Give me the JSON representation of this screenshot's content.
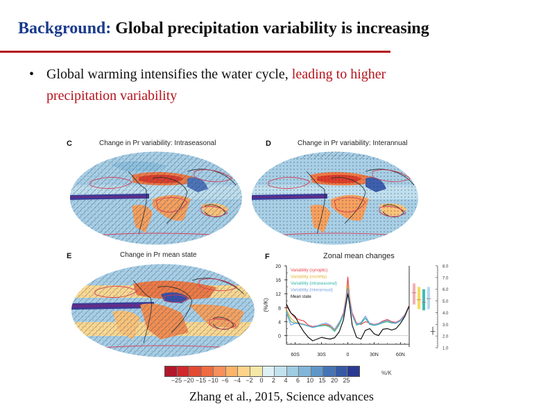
{
  "slide": {
    "title_lead": "Background:",
    "title_rest": "Global precipitation variability is increasing",
    "bullet_marker": "•",
    "bullet_text_normal": "Global warming intensifies the water cycle, ",
    "bullet_text_highlight": "leading to higher precipitation variability",
    "citation": "Zhang et al., 2015, Science advances",
    "colors": {
      "title_accent": "#1a3a8c",
      "rule": "#b5121b",
      "highlight": "#b5121b"
    }
  },
  "figure": {
    "panels": [
      {
        "id": "C",
        "title": "Change in Pr variability: Intraseasonal",
        "kind": "map",
        "hatched": true
      },
      {
        "id": "D",
        "title": "Change in Pr variability: Interannual",
        "kind": "map",
        "hatched": false
      },
      {
        "id": "E",
        "title": "Change in Pr mean state",
        "kind": "map",
        "hatched": true
      },
      {
        "id": "F",
        "title": "Zonal mean changes",
        "kind": "line"
      }
    ],
    "colorbar": {
      "unit": "%/K",
      "ticks": [
        "-25",
        "-20",
        "-15",
        "-10",
        "-6",
        "-4",
        "-2",
        "0",
        "2",
        "4",
        "6",
        "10",
        "15",
        "20",
        "25"
      ],
      "colors": [
        "#b2182b",
        "#cf2a2c",
        "#e34a33",
        "#ef6b40",
        "#f7905a",
        "#fbb468",
        "#fdd38a",
        "#f5e8a6",
        "#def0f4",
        "#c3e2ef",
        "#9fcbe3",
        "#82b6d9",
        "#5f98c8",
        "#4574b5",
        "#345aa5",
        "#2a3a92"
      ]
    }
  },
  "chart_data": {
    "type": "line",
    "title": "Zonal mean changes",
    "xlabel": "",
    "ylabel": "(%/K)",
    "xlim": [
      -70,
      70
    ],
    "ylim": [
      -2.5,
      20
    ],
    "x_ticks": [
      -60,
      -30,
      0,
      30,
      60
    ],
    "x_tick_labels": [
      "60S",
      "30S",
      "0",
      "30N",
      "60N"
    ],
    "y_ticks": [
      0,
      4,
      8,
      12,
      16,
      20
    ],
    "y_tick_labels": [
      "0",
      "4",
      "8",
      "12",
      "16",
      "20"
    ],
    "legend_position": "top-left",
    "x": [
      -70,
      -65,
      -60,
      -55,
      -50,
      -45,
      -40,
      -35,
      -30,
      -25,
      -20,
      -15,
      -10,
      -5,
      -2,
      0,
      2,
      5,
      10,
      15,
      20,
      25,
      30,
      35,
      40,
      45,
      50,
      55,
      60,
      65,
      70
    ],
    "series": [
      {
        "name": "Variability (synoptic)",
        "color": "#e8434a",
        "values": [
          8.5,
          6.5,
          5.0,
          4.5,
          4.2,
          3.0,
          2.6,
          2.8,
          3.0,
          3.2,
          2.8,
          1.6,
          3.5,
          6.5,
          11.0,
          16.8,
          11.0,
          6.5,
          3.6,
          3.2,
          4.0,
          3.6,
          3.2,
          3.5,
          4.2,
          4.6,
          4.0,
          3.8,
          4.5,
          6.0,
          8.7
        ]
      },
      {
        "name": "Variability (monthly)",
        "color": "#e6b43a",
        "values": [
          7.5,
          5.0,
          3.8,
          3.6,
          3.3,
          2.8,
          2.4,
          2.7,
          2.9,
          3.0,
          2.6,
          1.4,
          3.2,
          6.0,
          10.5,
          14.5,
          10.5,
          6.0,
          3.3,
          3.6,
          5.0,
          3.3,
          3.0,
          3.3,
          3.8,
          4.2,
          3.7,
          3.6,
          4.3,
          5.8,
          8.5
        ]
      },
      {
        "name": "Variability (intraseasonal)",
        "color": "#2fb5a8",
        "values": [
          7.0,
          4.0,
          3.5,
          3.4,
          3.1,
          2.7,
          2.3,
          2.6,
          2.8,
          2.9,
          2.4,
          1.2,
          3.0,
          5.8,
          10.0,
          13.5,
          10.0,
          5.8,
          3.0,
          3.4,
          5.0,
          3.2,
          2.9,
          3.2,
          3.7,
          4.0,
          3.6,
          3.5,
          4.2,
          5.7,
          8.5
        ]
      },
      {
        "name": "Variability (interannual)",
        "color": "#7aa2e8",
        "values": [
          6.5,
          3.0,
          3.6,
          3.5,
          3.2,
          2.8,
          2.4,
          2.8,
          3.3,
          3.6,
          3.0,
          1.8,
          3.8,
          6.0,
          10.0,
          13.0,
          10.0,
          6.0,
          3.2,
          3.8,
          5.6,
          3.5,
          3.1,
          3.4,
          4.0,
          4.4,
          3.8,
          3.6,
          4.4,
          5.8,
          8.5
        ]
      },
      {
        "name": "Mean state",
        "color": "#111111",
        "values": [
          9.0,
          6.5,
          5.5,
          3.0,
          1.0,
          -0.5,
          -1.5,
          -1.0,
          -0.5,
          -0.8,
          -1.0,
          -0.6,
          1.0,
          4.5,
          9.0,
          12.0,
          9.0,
          3.0,
          -0.5,
          -1.0,
          1.5,
          2.0,
          0.5,
          0.0,
          1.8,
          2.0,
          1.6,
          2.0,
          3.5,
          5.5,
          8.5
        ]
      }
    ],
    "side_panel": {
      "axis_label_side": "right",
      "ylim": [
        1.0,
        8.0
      ],
      "y_ticks": [
        "1.0",
        "2.0",
        "3.0",
        "4.0",
        "5.0",
        "6.0",
        "7.0",
        "8.0"
      ],
      "ranges": [
        {
          "name": "Variability (synoptic)",
          "color": "#f4a5ad",
          "low": 4.7,
          "mid": 5.7,
          "high": 6.5
        },
        {
          "name": "Variability (monthly)",
          "color": "#f2d84a",
          "low": 4.3,
          "mid": 5.1,
          "high": 6.2
        },
        {
          "name": "Variability (intraseasonal)",
          "color": "#2fb5a8",
          "low": 4.2,
          "mid": 4.9,
          "high": 6.0
        },
        {
          "name": "Variability (interannual)",
          "color": "#a9d6f2",
          "low": 4.3,
          "mid": 5.2,
          "high": 6.2
        },
        {
          "name": "Mean state",
          "color": "#9a9a9a",
          "low": 2.1,
          "mid": 2.4,
          "high": 2.8
        }
      ]
    }
  }
}
